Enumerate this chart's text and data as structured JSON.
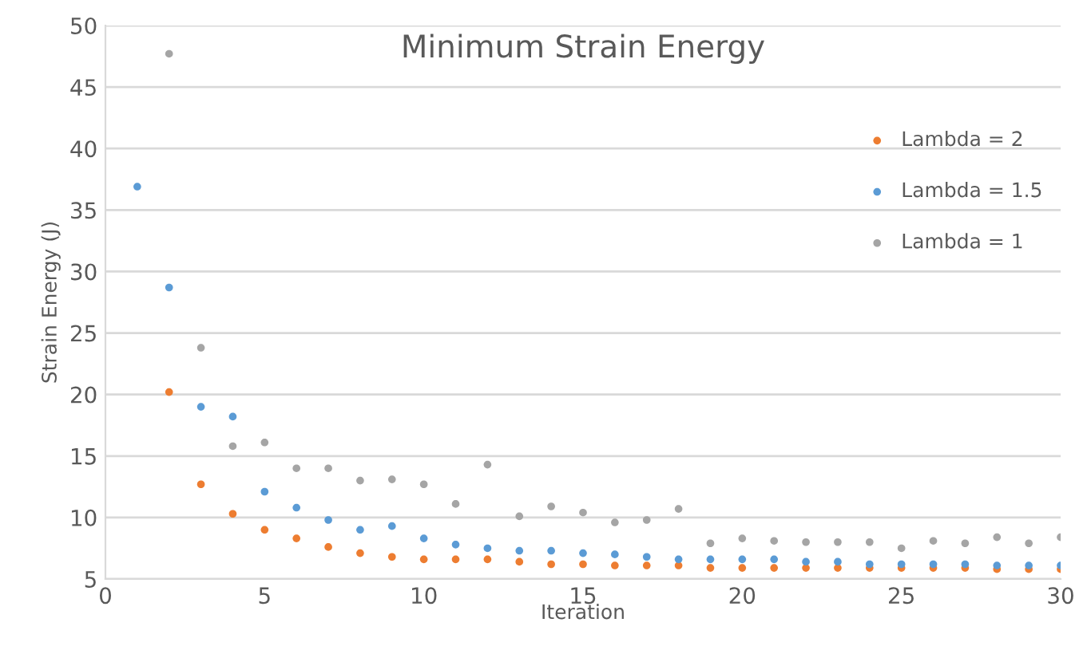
{
  "chart_data": {
    "type": "scatter",
    "title": "Minimum Strain Energy",
    "xlabel": "Iteration",
    "ylabel": "Strain Energy (J)",
    "xlim": [
      0,
      30
    ],
    "xticks": [
      0,
      5,
      10,
      15,
      20,
      25,
      30
    ],
    "ylim": [
      5,
      50
    ],
    "yticks": [
      5,
      10,
      15,
      20,
      25,
      30,
      35,
      40,
      45,
      50
    ],
    "grid": "y",
    "legend": "right",
    "marker": "circle",
    "series": [
      {
        "name": "Lambda = 2",
        "color": "#ed7d31",
        "x": [
          2,
          3,
          4,
          5,
          6,
          7,
          8,
          9,
          10,
          11,
          12,
          13,
          14,
          15,
          16,
          17,
          18,
          19,
          20,
          21,
          22,
          23,
          24,
          25,
          26,
          27,
          28,
          29,
          30
        ],
        "values": [
          20.2,
          12.7,
          10.3,
          9.0,
          8.3,
          7.6,
          7.1,
          6.8,
          6.6,
          6.6,
          6.6,
          6.4,
          6.2,
          6.2,
          6.1,
          6.1,
          6.1,
          5.9,
          5.9,
          5.9,
          5.9,
          5.9,
          5.9,
          5.9,
          5.9,
          5.9,
          5.8,
          5.8,
          5.8
        ]
      },
      {
        "name": "Lambda = 1.5",
        "color": "#5b9bd5",
        "x": [
          1,
          2,
          3,
          4,
          5,
          6,
          7,
          8,
          9,
          10,
          11,
          12,
          13,
          14,
          15,
          16,
          17,
          18,
          19,
          20,
          21,
          22,
          23,
          24,
          25,
          26,
          27,
          28,
          29,
          30
        ],
        "values": [
          36.9,
          28.7,
          19.0,
          18.2,
          12.1,
          10.8,
          9.8,
          9.0,
          9.3,
          8.3,
          7.8,
          7.5,
          7.3,
          7.3,
          7.1,
          7.0,
          6.8,
          6.6,
          6.6,
          6.6,
          6.6,
          6.4,
          6.4,
          6.2,
          6.2,
          6.2,
          6.2,
          6.1,
          6.1,
          6.1
        ]
      },
      {
        "name": "Lambda = 1",
        "color": "#a5a5a5",
        "x": [
          2,
          3,
          4,
          5,
          6,
          7,
          8,
          9,
          10,
          11,
          12,
          13,
          14,
          15,
          16,
          17,
          18,
          19,
          20,
          21,
          22,
          23,
          24,
          25,
          26,
          27,
          28,
          29,
          30
        ],
        "values": [
          47.7,
          23.8,
          15.8,
          16.1,
          14.0,
          14.0,
          13.0,
          13.1,
          12.7,
          11.1,
          14.3,
          10.1,
          10.9,
          10.4,
          9.6,
          9.8,
          10.7,
          7.9,
          8.3,
          8.1,
          8.0,
          8.0,
          8.0,
          7.5,
          8.1,
          7.9,
          8.4,
          7.9,
          8.4
        ]
      }
    ]
  }
}
